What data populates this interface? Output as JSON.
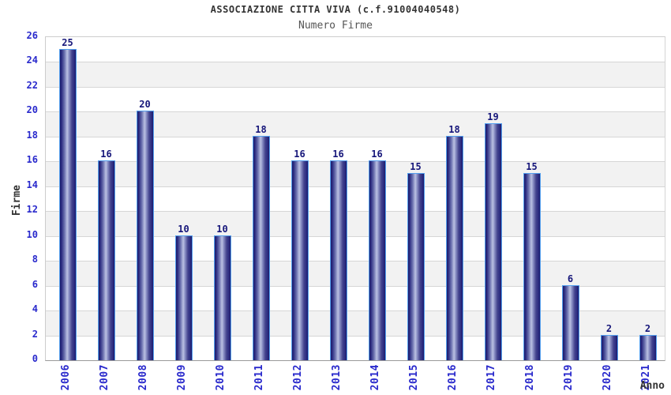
{
  "chart_data": {
    "type": "bar",
    "title": "ASSOCIAZIONE CITTA VIVA (c.f.91004040548)",
    "subtitle": "Numero Firme",
    "xlabel": "Anno",
    "ylabel": "Firme",
    "categories": [
      "2006",
      "2007",
      "2008",
      "2009",
      "2010",
      "2011",
      "2012",
      "2013",
      "2014",
      "2015",
      "2016",
      "2017",
      "2018",
      "2019",
      "2020",
      "2021"
    ],
    "values": [
      25,
      16,
      20,
      10,
      10,
      18,
      16,
      16,
      16,
      15,
      18,
      19,
      15,
      6,
      2,
      2
    ],
    "ylim": [
      0,
      26
    ],
    "ytick_step": 2,
    "grid": true,
    "legend_position": "none",
    "colors": {
      "tick_label": "#2929cc",
      "value_label": "#16167a",
      "bar_dark": "#1b1b6b",
      "bar_highlight": "#bac0e1",
      "bar_border": "#54a0ef",
      "band_gray": "#f2f2f2",
      "band_white": "#ffffff",
      "gridline": "#d6d6d6",
      "title_color": "#333333",
      "subtitle_color": "#555555"
    }
  }
}
